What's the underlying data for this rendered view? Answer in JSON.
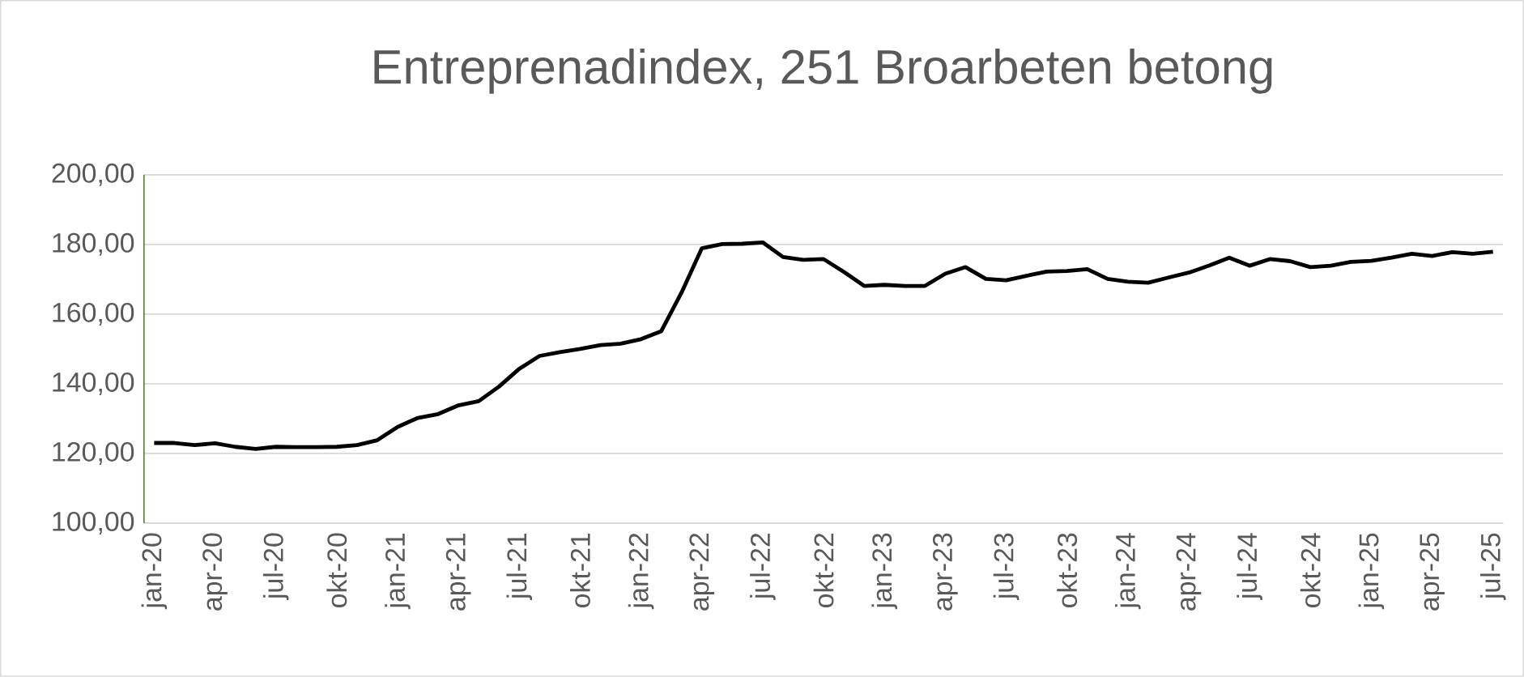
{
  "chart_data": {
    "type": "line",
    "title": "Entreprenadindex, 251 Broarbeten betong",
    "categories": [
      "jan-20",
      null,
      null,
      "apr-20",
      null,
      null,
      "jul-20",
      null,
      null,
      "okt-20",
      null,
      null,
      "jan-21",
      null,
      null,
      "apr-21",
      null,
      null,
      "jul-21",
      null,
      null,
      "okt-21",
      null,
      null,
      "jan-22",
      null,
      null,
      "apr-22",
      null,
      null,
      "jul-22",
      null,
      null,
      "okt-22",
      null,
      null,
      "jan-23",
      null,
      null,
      "apr-23",
      null,
      null,
      "jul-23",
      null,
      null,
      "okt-23",
      null,
      null,
      "jan-24",
      null,
      null,
      "apr-24",
      null,
      null,
      "jul-24",
      null,
      null,
      "okt-24",
      null,
      null,
      "jan-25",
      null,
      null,
      "apr-25",
      null,
      null,
      "jul-25"
    ],
    "series": [
      {
        "color": "#000000",
        "values": [
          123.0,
          123.0,
          122.4,
          122.9,
          121.9,
          121.3,
          121.9,
          121.8,
          121.8,
          121.9,
          122.4,
          123.8,
          127.6,
          130.2,
          131.3,
          133.8,
          135.0,
          139.2,
          144.3,
          148.0,
          149.1,
          150.0,
          151.1,
          151.5,
          152.8,
          155.1,
          166.2,
          178.9,
          180.1,
          180.2,
          180.6,
          176.4,
          175.6,
          175.8,
          172.1,
          168.1,
          168.4,
          168.1,
          168.1,
          171.6,
          173.5,
          170.1,
          169.7,
          171.0,
          172.2,
          172.4,
          172.9,
          170.1,
          169.3,
          169.0,
          170.5,
          171.9,
          173.9,
          176.2,
          173.9,
          175.8,
          175.2,
          173.5,
          173.9,
          175.0,
          175.3,
          176.2,
          177.3,
          176.7,
          177.8,
          177.3,
          177.9
        ]
      }
    ],
    "ylim": [
      100,
      200
    ],
    "yticks": [
      {
        "value": 100,
        "label": "100,00"
      },
      {
        "value": 120,
        "label": "120,00"
      },
      {
        "value": 140,
        "label": "140,00"
      },
      {
        "value": 160,
        "label": "160,00"
      },
      {
        "value": 180,
        "label": "180,00"
      },
      {
        "value": 200,
        "label": "200,00"
      }
    ],
    "grid": "y",
    "line_style": "solid",
    "marker": "none"
  }
}
